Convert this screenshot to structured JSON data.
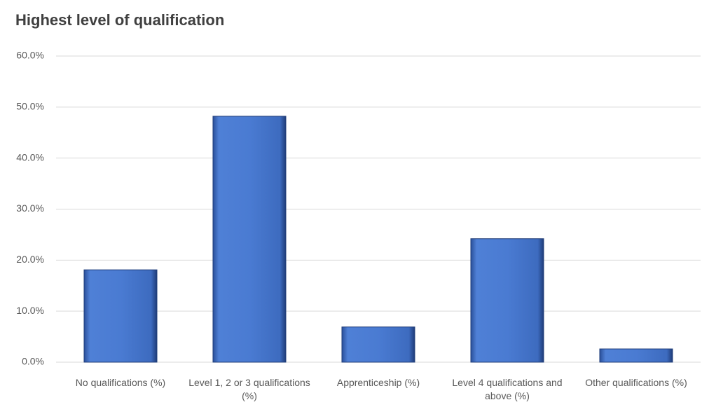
{
  "chart_data": {
    "type": "bar",
    "title": "Highest level of qualification",
    "categories": [
      "No qualifications (%)",
      "Level 1, 2 or 3 qualifications (%)",
      "Apprenticeship (%)",
      "Level 4 qualifications and above (%)",
      "Other qualifications (%)"
    ],
    "values": [
      18.1,
      48.2,
      6.9,
      24.2,
      2.6
    ],
    "color": "#4472c4",
    "ylim": [
      0,
      60
    ],
    "yticks": [
      {
        "value": 0,
        "label": "0.0%"
      },
      {
        "value": 10,
        "label": "10.0%"
      },
      {
        "value": 20,
        "label": "20.0%"
      },
      {
        "value": 30,
        "label": "30.0%"
      },
      {
        "value": 40,
        "label": "40.0%"
      },
      {
        "value": 50,
        "label": "50.0%"
      },
      {
        "value": 60,
        "label": "60.0%"
      }
    ],
    "grid": true
  }
}
